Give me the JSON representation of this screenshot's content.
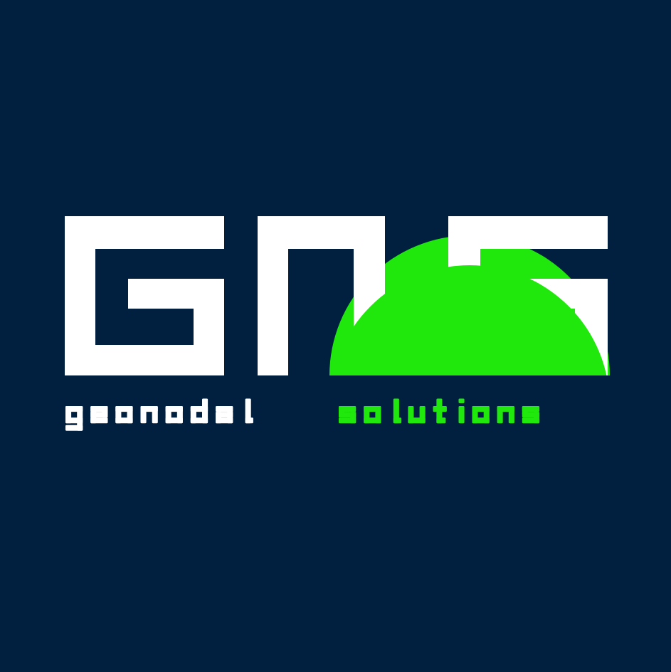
{
  "logo": {
    "monogram": "GNS",
    "tagline_part1": "geonodal",
    "tagline_part2": "solutions"
  },
  "colors": {
    "background": "#012040",
    "white": "#ffffff",
    "green": "#20e80c"
  }
}
